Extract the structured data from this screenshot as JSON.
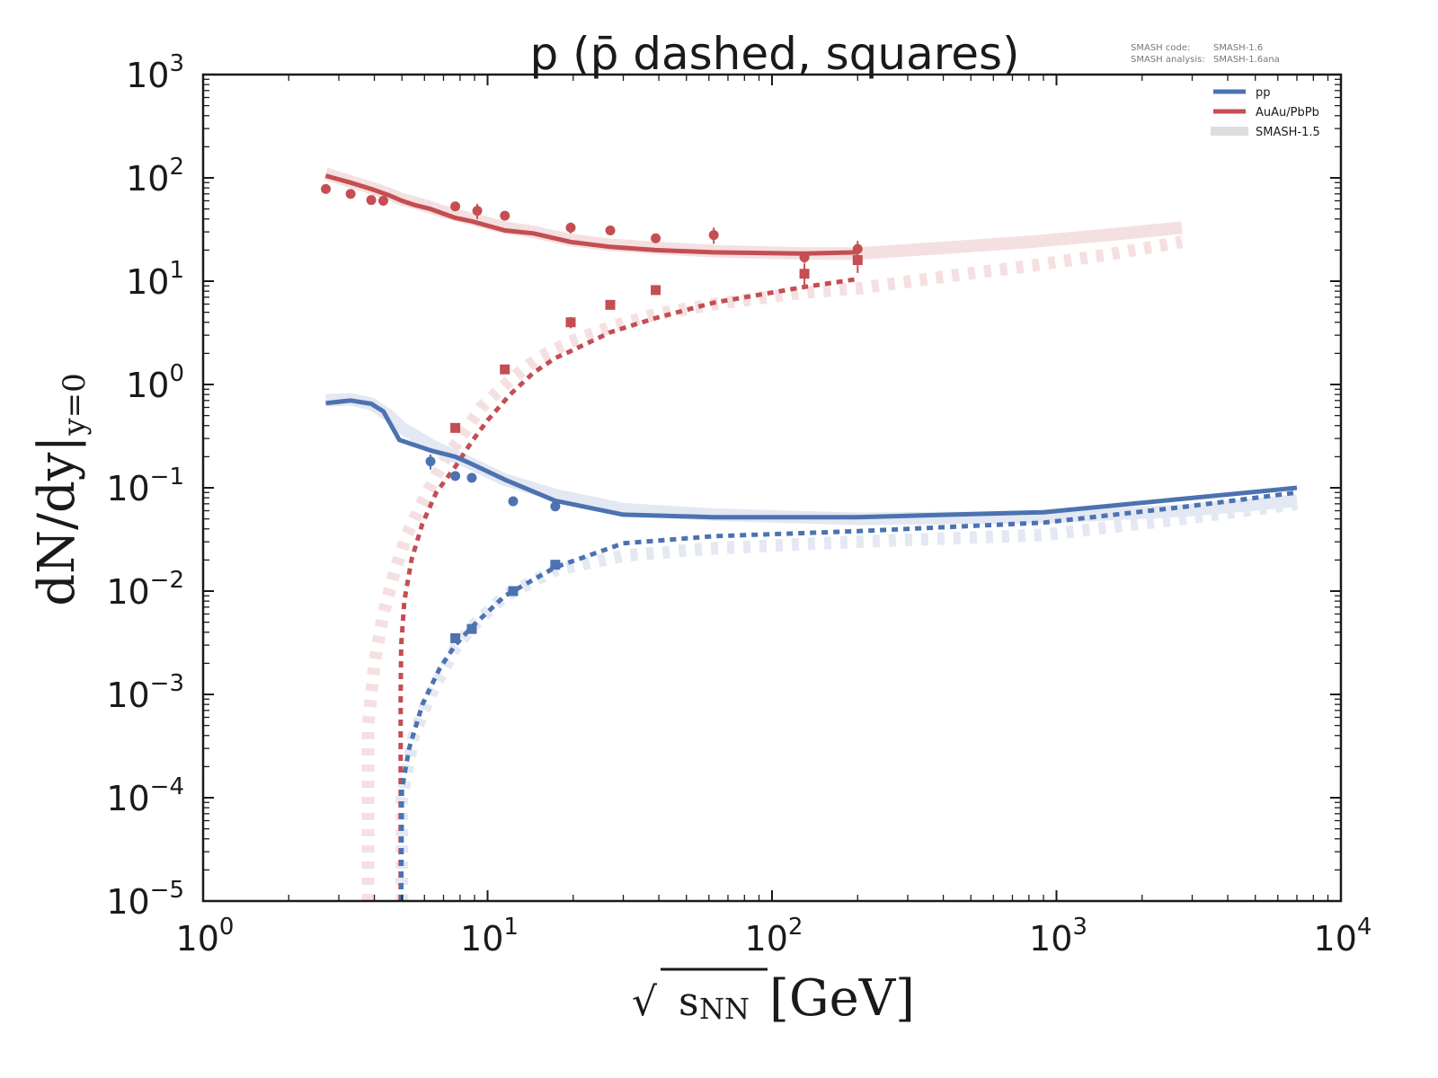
{
  "chart_data": {
    "type": "line",
    "title": "p (p̄ dashed, squares)",
    "xlabel": "√s_NN [GeV]",
    "xlabel_parts": {
      "sqrt": "√",
      "s": "s",
      "sub": "NN",
      "unit": "[GeV]"
    },
    "ylabel": "dN/dy|_{y=0}",
    "ylabel_parts": {
      "main": "dN/dy|",
      "sub": "y=0"
    },
    "xscale": "log",
    "yscale": "log",
    "xlim": [
      1,
      10000
    ],
    "ylim": [
      1e-05,
      1000
    ],
    "grid": false,
    "x_ticks": [
      {
        "base": "10",
        "exp": "0",
        "value": 1
      },
      {
        "base": "10",
        "exp": "1",
        "value": 10
      },
      {
        "base": "10",
        "exp": "2",
        "value": 100
      },
      {
        "base": "10",
        "exp": "3",
        "value": 1000
      },
      {
        "base": "10",
        "exp": "4",
        "value": 10000
      }
    ],
    "y_ticks": [
      {
        "base": "10",
        "exp": "3",
        "value": 1000
      },
      {
        "base": "10",
        "exp": "2",
        "value": 100
      },
      {
        "base": "10",
        "exp": "1",
        "value": 10
      },
      {
        "base": "10",
        "exp": "0",
        "value": 1
      },
      {
        "base": "10",
        "exp": "−1",
        "value": 0.1
      },
      {
        "base": "10",
        "exp": "−2",
        "value": 0.01
      },
      {
        "base": "10",
        "exp": "−3",
        "value": 0.001
      },
      {
        "base": "10",
        "exp": "−4",
        "value": 0.0001
      },
      {
        "base": "10",
        "exp": "−5",
        "value": 1e-05
      }
    ],
    "meta_text": {
      "code_label": "SMASH code:",
      "code_value": "SMASH-1.6",
      "analysis_label": "SMASH analysis:",
      "analysis_value": "SMASH-1.6ana"
    },
    "legend": {
      "position": "top-right",
      "entries": [
        {
          "label": "pp",
          "color": "#4c72b0"
        },
        {
          "label": "AuAu/PbPb",
          "color": "#c44e52"
        },
        {
          "label": "SMASH-1.5",
          "color": "#dddddd"
        }
      ]
    },
    "colors": {
      "pp": "#4c72b0",
      "pp_light": "#e3e8f3",
      "aa": "#c44e52",
      "aa_light": "#f5e0e1"
    },
    "series": [
      {
        "name": "AuAu/PbPb p (SMASH-1.5)",
        "system": "aa",
        "style": "solid",
        "version": "old",
        "x": [
          2.7,
          3.3,
          3.9,
          4.5,
          5.0,
          5.5,
          6.3,
          7.0,
          7.7,
          8.8,
          11.5,
          14.5,
          19.6,
          27,
          39,
          62.4,
          130,
          200,
          400,
          800,
          1500,
          2760
        ],
        "y": [
          110,
          92,
          80,
          70,
          62,
          58,
          52,
          47,
          44,
          40,
          33,
          30,
          25,
          22.5,
          21,
          19.5,
          18.5,
          18.5,
          21,
          24,
          28,
          33
        ]
      },
      {
        "name": "AuAu/PbPb p",
        "system": "aa",
        "style": "solid",
        "version": "new",
        "x": [
          2.7,
          3.3,
          3.9,
          4.5,
          5.0,
          5.5,
          6.3,
          7.0,
          7.7,
          8.8,
          11.5,
          14.5,
          19.6,
          27,
          39,
          62.4,
          130,
          200
        ],
        "y": [
          105,
          90,
          78,
          68,
          60,
          55,
          50,
          45,
          41,
          38,
          31,
          29,
          24,
          21.5,
          20,
          19,
          18.5,
          19
        ]
      },
      {
        "name": "AuAu/PbPb pbar (SMASH-1.5)",
        "system": "aa",
        "style": "dashed",
        "version": "old",
        "x": [
          3.8,
          3.8,
          3.8,
          4.0,
          4.3,
          4.7,
          5.2,
          6.0,
          7.0,
          8.0,
          9.5,
          12,
          15,
          19.6,
          27,
          39,
          62.4,
          130,
          200,
          400,
          800,
          1500,
          2760
        ],
        "y": [
          1e-05,
          0.0001,
          0.0005,
          0.002,
          0.006,
          0.015,
          0.035,
          0.08,
          0.18,
          0.3,
          0.6,
          1.1,
          1.8,
          2.6,
          3.6,
          4.8,
          6.0,
          7.8,
          8.5,
          11,
          14,
          18,
          24
        ]
      },
      {
        "name": "AuAu/PbPb pbar",
        "system": "aa",
        "style": "dashed",
        "version": "new",
        "x": [
          4.95,
          4.95,
          4.97,
          5.1,
          5.4,
          5.9,
          6.6,
          7.7,
          8.8,
          10,
          12,
          14.5,
          17.3,
          19.6,
          27,
          39,
          62.4,
          130,
          200
        ],
        "y": [
          1e-05,
          0.001,
          0.003,
          0.008,
          0.02,
          0.045,
          0.09,
          0.16,
          0.28,
          0.45,
          0.8,
          1.3,
          1.8,
          2.1,
          3.2,
          4.4,
          6.2,
          8.8,
          10.5
        ]
      },
      {
        "name": "pp p (SMASH-1.5)",
        "system": "pp",
        "style": "solid",
        "version": "old",
        "x": [
          2.7,
          3.3,
          3.9,
          4.5,
          5.0,
          6.3,
          7.7,
          8.8,
          11.5,
          17.3,
          30,
          62.4,
          200,
          900,
          2760,
          7000
        ],
        "y": [
          0.7,
          0.72,
          0.65,
          0.5,
          0.38,
          0.26,
          0.2,
          0.17,
          0.12,
          0.085,
          0.062,
          0.055,
          0.05,
          0.052,
          0.06,
          0.075
        ]
      },
      {
        "name": "pp p",
        "system": "pp",
        "style": "solid",
        "version": "new",
        "x": [
          2.7,
          3.3,
          3.9,
          4.3,
          4.9,
          6.3,
          7.7,
          8.8,
          11.5,
          17.3,
          30,
          62.4,
          200,
          900,
          2760,
          7000
        ],
        "y": [
          0.66,
          0.7,
          0.65,
          0.55,
          0.29,
          0.23,
          0.2,
          0.17,
          0.12,
          0.075,
          0.055,
          0.052,
          0.052,
          0.058,
          0.078,
          0.1
        ]
      },
      {
        "name": "pp pbar (SMASH-1.5)",
        "system": "pp",
        "style": "dashed",
        "version": "old",
        "x": [
          5.0,
          5.0,
          5.5,
          6.3,
          7.7,
          8.8,
          11.5,
          17.3,
          30,
          62.4,
          200,
          900,
          2760,
          7000
        ],
        "y": [
          1e-05,
          0.0001,
          0.0004,
          0.001,
          0.0028,
          0.0045,
          0.009,
          0.016,
          0.022,
          0.026,
          0.03,
          0.035,
          0.05,
          0.07
        ]
      },
      {
        "name": "pp pbar",
        "system": "pp",
        "style": "dashed",
        "version": "new",
        "x": [
          4.97,
          5.0,
          5.3,
          5.9,
          6.8,
          7.7,
          8.8,
          11.5,
          17.3,
          30,
          62.4,
          200,
          900,
          2760,
          7000
        ],
        "y": [
          1e-05,
          0.00012,
          0.0003,
          0.0008,
          0.0018,
          0.003,
          0.0045,
          0.009,
          0.017,
          0.029,
          0.034,
          0.038,
          0.046,
          0.065,
          0.09
        ]
      }
    ],
    "markers": [
      {
        "name": "AuAu/PbPb p data",
        "system": "aa",
        "shape": "circle",
        "x": [
          2.7,
          3.3,
          3.9,
          4.3,
          7.7,
          9.2,
          11.5,
          19.6,
          27,
          39,
          62.4,
          130,
          200
        ],
        "y": [
          78,
          70,
          61,
          60,
          53,
          48,
          43,
          33,
          31,
          26,
          28,
          17,
          20.5
        ],
        "yerr": [
          0,
          0,
          0,
          0,
          4,
          8,
          4,
          4,
          3,
          2.5,
          5,
          2,
          4
        ]
      },
      {
        "name": "AuAu/PbPb pbar data",
        "system": "aa",
        "shape": "square",
        "x": [
          7.7,
          11.5,
          19.6,
          27,
          39,
          130,
          200
        ],
        "y": [
          0.38,
          1.4,
          4.0,
          5.9,
          8.2,
          11.8,
          16
        ],
        "yerr": [
          0.03,
          0.1,
          0.5,
          0.5,
          0.7,
          3,
          4
        ]
      },
      {
        "name": "pp p data",
        "system": "pp",
        "shape": "circle",
        "x": [
          6.3,
          7.7,
          8.8,
          12.3,
          17.3
        ],
        "y": [
          0.18,
          0.13,
          0.125,
          0.074,
          0.066
        ],
        "yerr": [
          0.03,
          0,
          0,
          0,
          0
        ]
      },
      {
        "name": "pp pbar data",
        "system": "pp",
        "shape": "square",
        "x": [
          7.7,
          8.8,
          12.3,
          17.3
        ],
        "y": [
          0.0035,
          0.0043,
          0.01,
          0.018
        ],
        "yerr": [
          0,
          0,
          0,
          0
        ]
      }
    ]
  }
}
